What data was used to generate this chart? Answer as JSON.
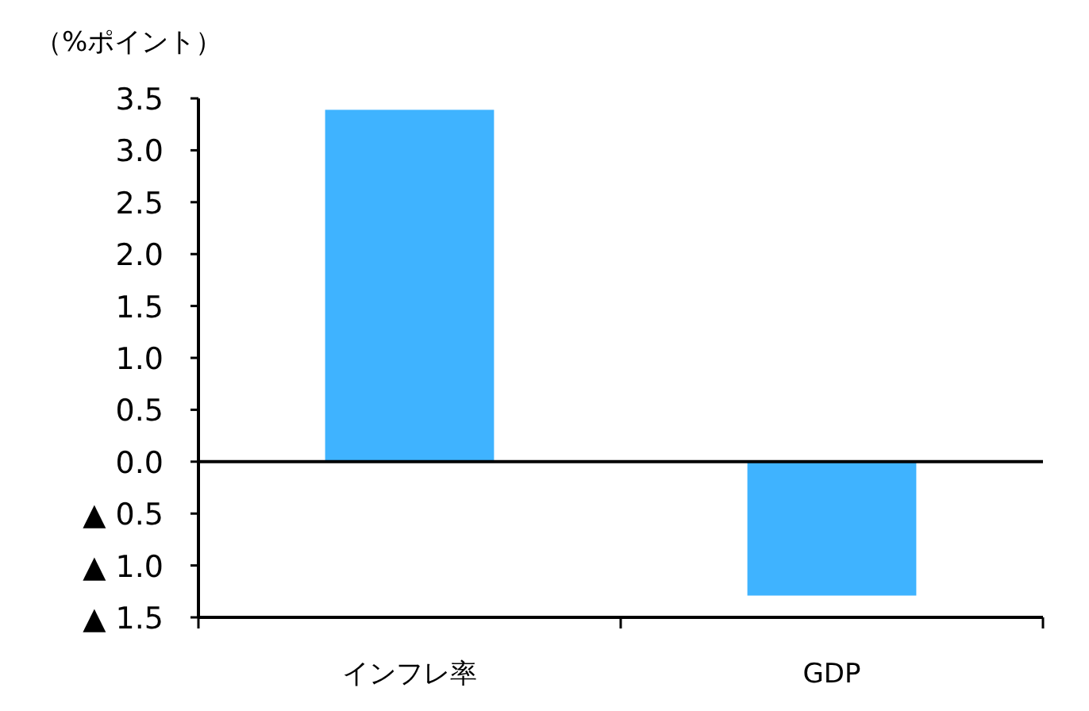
{
  "chart_data": {
    "type": "bar",
    "ylabel": "（%ポイント）",
    "categories": [
      "インフレ率",
      "GDP"
    ],
    "values": [
      3.39,
      -1.29
    ],
    "color": "#3fb3ff",
    "ylim": [
      -1.5,
      3.5
    ],
    "yticks": [
      {
        "value": 3.5,
        "label": "3.5"
      },
      {
        "value": 3.0,
        "label": "3.0"
      },
      {
        "value": 2.5,
        "label": "2.5"
      },
      {
        "value": 2.0,
        "label": "2.0"
      },
      {
        "value": 1.5,
        "label": "1.5"
      },
      {
        "value": 1.0,
        "label": "1.0"
      },
      {
        "value": 0.5,
        "label": "0.5"
      },
      {
        "value": 0.0,
        "label": "0.0"
      },
      {
        "value": -0.5,
        "label": "▲ 0.5"
      },
      {
        "value": -1.0,
        "label": "▲ 1.0"
      },
      {
        "value": -1.5,
        "label": "▲ 1.5"
      }
    ],
    "ref_lines": [
      {
        "axis": "y",
        "value": 0,
        "color": "#000000"
      }
    ]
  }
}
